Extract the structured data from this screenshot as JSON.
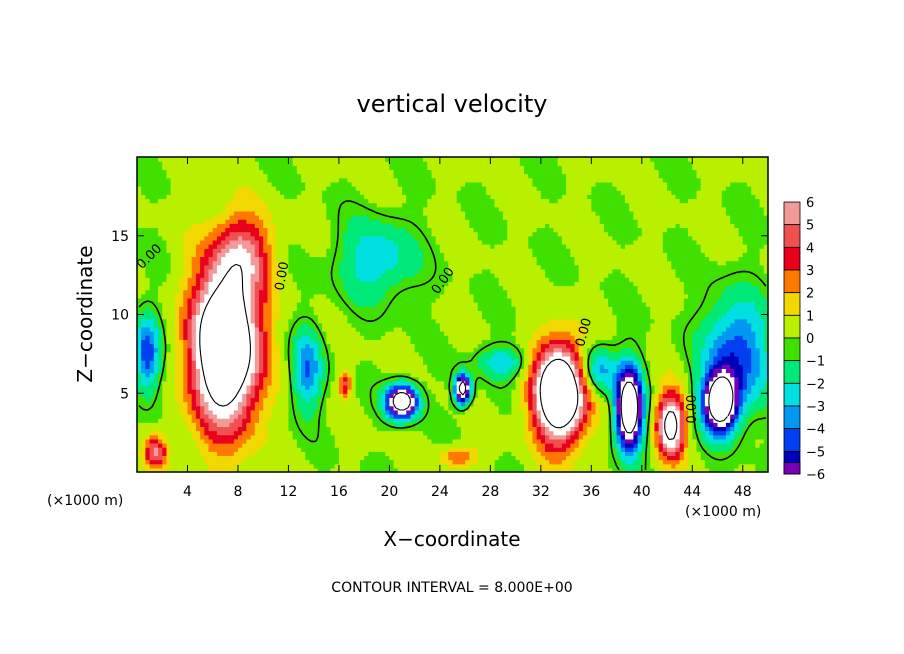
{
  "chart_data": {
    "type": "heatmap",
    "title": "vertical velocity",
    "xlabel": "X−coordinate",
    "ylabel": "Z−coordinate",
    "x_unit_label": "(×1000 m)",
    "z_unit_label": "(×1000 m)",
    "xlim": [
      0,
      50
    ],
    "ylim": [
      0,
      20
    ],
    "x_ticks": [
      {
        "value": 4,
        "label": "4"
      },
      {
        "value": 8,
        "label": "8"
      },
      {
        "value": 12,
        "label": "12"
      },
      {
        "value": 16,
        "label": "16"
      },
      {
        "value": 20,
        "label": "20"
      },
      {
        "value": 24,
        "label": "24"
      },
      {
        "value": 28,
        "label": "28"
      },
      {
        "value": 32,
        "label": "32"
      },
      {
        "value": 36,
        "label": "36"
      },
      {
        "value": 40,
        "label": "40"
      },
      {
        "value": 44,
        "label": "44"
      },
      {
        "value": 48,
        "label": "48"
      }
    ],
    "y_ticks": [
      {
        "value": 5,
        "label": "5"
      },
      {
        "value": 10,
        "label": "10"
      },
      {
        "value": 15,
        "label": "15"
      }
    ],
    "colorbar": {
      "levels": [
        {
          "value": 6,
          "label": "6",
          "color": "#f29a9a"
        },
        {
          "value": 5,
          "label": "5",
          "color": "#f05050"
        },
        {
          "value": 4,
          "label": "4",
          "color": "#e8001c"
        },
        {
          "value": 3,
          "label": "3",
          "color": "#ff7800"
        },
        {
          "value": 2,
          "label": "2",
          "color": "#f0d800"
        },
        {
          "value": 1,
          "label": "1",
          "color": "#b8f000"
        },
        {
          "value": 0,
          "label": "0",
          "color": "#40e000"
        },
        {
          "value": -1,
          "label": "−1",
          "color": "#00e878"
        },
        {
          "value": -2,
          "label": "−2",
          "color": "#00e0e0"
        },
        {
          "value": -3,
          "label": "−3",
          "color": "#0098f0"
        },
        {
          "value": -4,
          "label": "−4",
          "color": "#0040f0"
        },
        {
          "value": -5,
          "label": "−5",
          "color": "#0000b8"
        },
        {
          "value": -6,
          "label": "−6",
          "color": "#7800b8"
        }
      ]
    },
    "contour_interval_text": "CONTOUR INTERVAL = 8.000E+00",
    "contour_labels": [
      {
        "text": "0.00",
        "x": 24.5,
        "z": 12.0,
        "rotate": -55
      },
      {
        "text": "0.00",
        "x": 11.8,
        "z": 12.4,
        "rotate": -80
      },
      {
        "text": "0.00",
        "x": 35.7,
        "z": 8.8,
        "rotate": -75
      },
      {
        "text": "0.00",
        "x": 44.3,
        "z": 4.0,
        "rotate": -90
      },
      {
        "text": "0.00",
        "x": 1.2,
        "z": 13.5,
        "rotate": -45
      }
    ],
    "features": [
      {
        "kind": "updraft",
        "x": 7.0,
        "z": 8.0,
        "sx": 2.6,
        "sz": 5.0,
        "amp": 13
      },
      {
        "kind": "updraft",
        "x": 8.5,
        "z": 14.0,
        "sx": 2.2,
        "sz": 2.5,
        "amp": 4
      },
      {
        "kind": "updraft",
        "x": 33.5,
        "z": 5.0,
        "sx": 2.0,
        "sz": 3.0,
        "amp": 13
      },
      {
        "kind": "updraft",
        "x": 42.3,
        "z": 3.0,
        "sx": 1.1,
        "sz": 2.0,
        "amp": 9
      },
      {
        "kind": "updraft",
        "x": 1.5,
        "z": 1.3,
        "sx": 0.9,
        "sz": 1.0,
        "amp": 5
      },
      {
        "kind": "updraft",
        "x": 16.5,
        "z": 5.6,
        "sx": 0.5,
        "sz": 0.8,
        "amp": 4
      },
      {
        "kind": "updraft",
        "x": 25.5,
        "z": 1.0,
        "sx": 1.5,
        "sz": 0.7,
        "amp": 3
      },
      {
        "kind": "downdraft",
        "x": 39.0,
        "z": 4.0,
        "sx": 1.0,
        "sz": 2.5,
        "amp": -13
      },
      {
        "kind": "downdraft",
        "x": 46.2,
        "z": 4.4,
        "sx": 1.3,
        "sz": 1.8,
        "amp": -12
      },
      {
        "kind": "downdraft",
        "x": 21.0,
        "z": 4.5,
        "sx": 1.2,
        "sz": 1.0,
        "amp": -12
      },
      {
        "kind": "downdraft",
        "x": 25.8,
        "z": 5.3,
        "sx": 0.6,
        "sz": 0.9,
        "amp": -11
      },
      {
        "kind": "downdraft",
        "x": 19.0,
        "z": 13.5,
        "sx": 3.0,
        "sz": 2.5,
        "amp": -3
      },
      {
        "kind": "downdraft",
        "x": 47.5,
        "z": 7.5,
        "sx": 2.5,
        "sz": 3.5,
        "amp": -5
      },
      {
        "kind": "downdraft",
        "x": 13.5,
        "z": 6.5,
        "sx": 1.2,
        "sz": 2.5,
        "amp": -4
      },
      {
        "kind": "downdraft",
        "x": 0.8,
        "z": 7.5,
        "sx": 1.0,
        "sz": 2.5,
        "amp": -5
      },
      {
        "kind": "downdraft",
        "x": 36.5,
        "z": 6.5,
        "sx": 1.5,
        "sz": 1.5,
        "amp": -4
      },
      {
        "kind": "downdraft",
        "x": 29.0,
        "z": 7.0,
        "sx": 2.0,
        "sz": 1.0,
        "amp": -3
      }
    ]
  }
}
